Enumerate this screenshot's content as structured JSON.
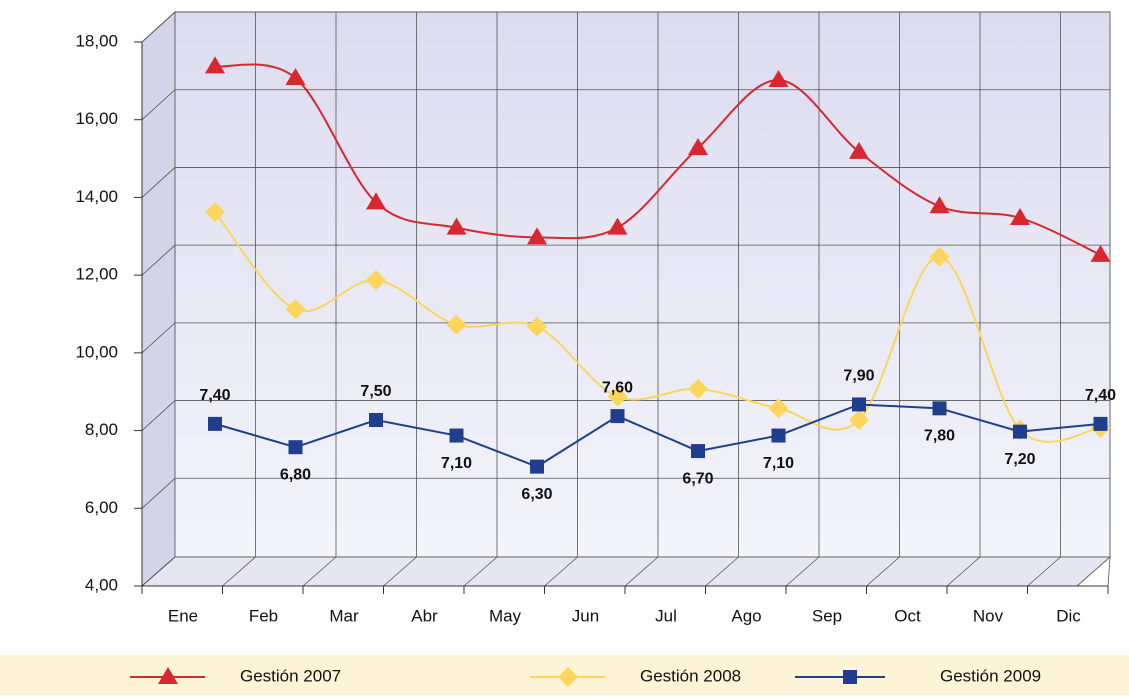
{
  "chart_data": {
    "type": "line",
    "categories": [
      "Ene",
      "Feb",
      "Mar",
      "Abr",
      "May",
      "Jun",
      "Jul",
      "Ago",
      "Sep",
      "Oct",
      "Nov",
      "Dic"
    ],
    "series": [
      {
        "name": "Gestión 2007",
        "color": "#d7282f",
        "marker": "triangle",
        "smooth": true,
        "values": [
          16.6,
          16.3,
          13.1,
          12.45,
          12.2,
          12.45,
          14.5,
          16.25,
          14.4,
          13.0,
          12.7,
          11.75
        ]
      },
      {
        "name": "Gestión 2008",
        "color": "#fdd55b",
        "marker": "diamond",
        "smooth": true,
        "values": [
          12.85,
          10.35,
          11.1,
          9.95,
          9.9,
          8.1,
          8.3,
          7.8,
          7.5,
          11.7,
          7.25,
          7.3
        ]
      },
      {
        "name": "Gestión 2009",
        "color": "#1f3f8c",
        "marker": "square",
        "smooth": false,
        "values": [
          7.4,
          6.8,
          7.5,
          7.1,
          6.3,
          7.6,
          6.7,
          7.1,
          7.9,
          7.8,
          7.2,
          7.4
        ],
        "value_labels": [
          "7,40",
          "6,80",
          "7,50",
          "7,10",
          "6,30",
          "7,60",
          "6,70",
          "7,10",
          "7,90",
          "7,80",
          "7,20",
          "7,40"
        ]
      }
    ],
    "ylim": [
      4,
      18
    ],
    "yticks": [
      {
        "value": 4,
        "label": "4,00"
      },
      {
        "value": 6,
        "label": "6,00"
      },
      {
        "value": 8,
        "label": "8,00"
      },
      {
        "value": 10,
        "label": "10,00"
      },
      {
        "value": 12,
        "label": "12,00"
      },
      {
        "value": 14,
        "label": "14,00"
      },
      {
        "value": 16,
        "label": "16,00"
      },
      {
        "value": 18,
        "label": "18,00"
      }
    ],
    "grid": true,
    "legend": "bottom"
  }
}
